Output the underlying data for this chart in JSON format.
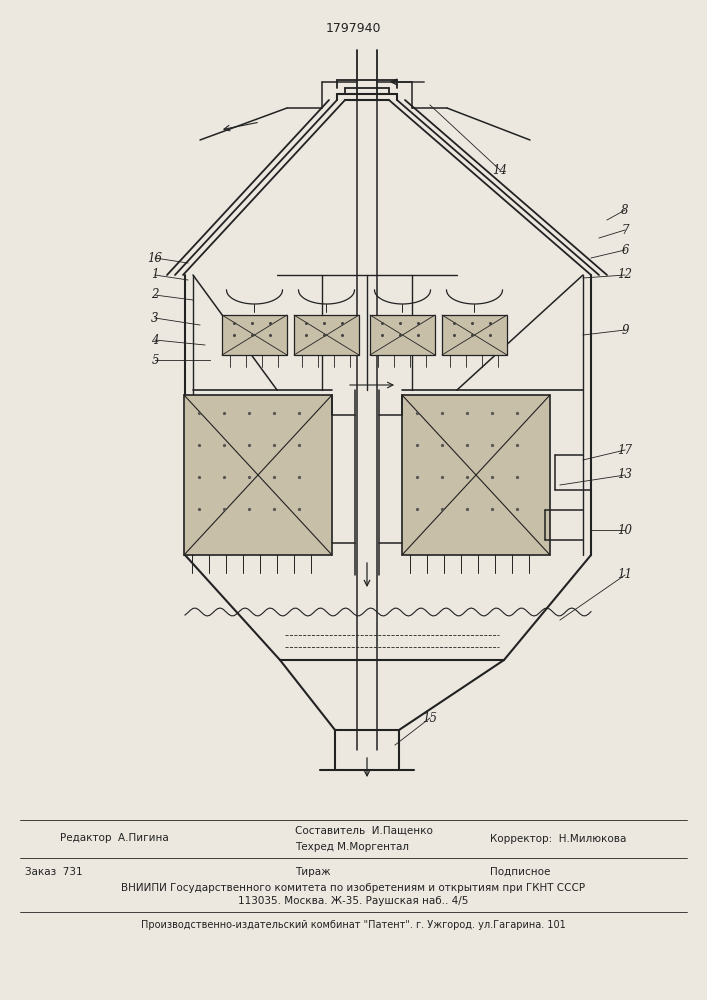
{
  "patent_number": "1797940",
  "bg_color": "#ece8e0",
  "line_color": "#222222",
  "fill_light": "#c8bfa8",
  "footer_lines": [
    {
      "left": "Редактор  А.Пигина",
      "center": "Составитель  И.Пащенко",
      "right": ""
    },
    {
      "left": "",
      "center": "Техред М.Моргентал",
      "right": "Корректор:  Н.Милюкова"
    }
  ],
  "footer2_left": "Заказ  731",
  "footer2_center": "Тираж",
  "footer2_right": "Подписное",
  "footer3": "ВНИИПИ Государственного комитета по изобретениям и открытиям при ГКНТ СССР",
  "footer4": "113035. Москва. Ж-35. Раушская наб.. 4/5",
  "footer5": "Производственно-издательский комбинат \"Патент\". г. Ужгород. ул.Гагарина. 101"
}
